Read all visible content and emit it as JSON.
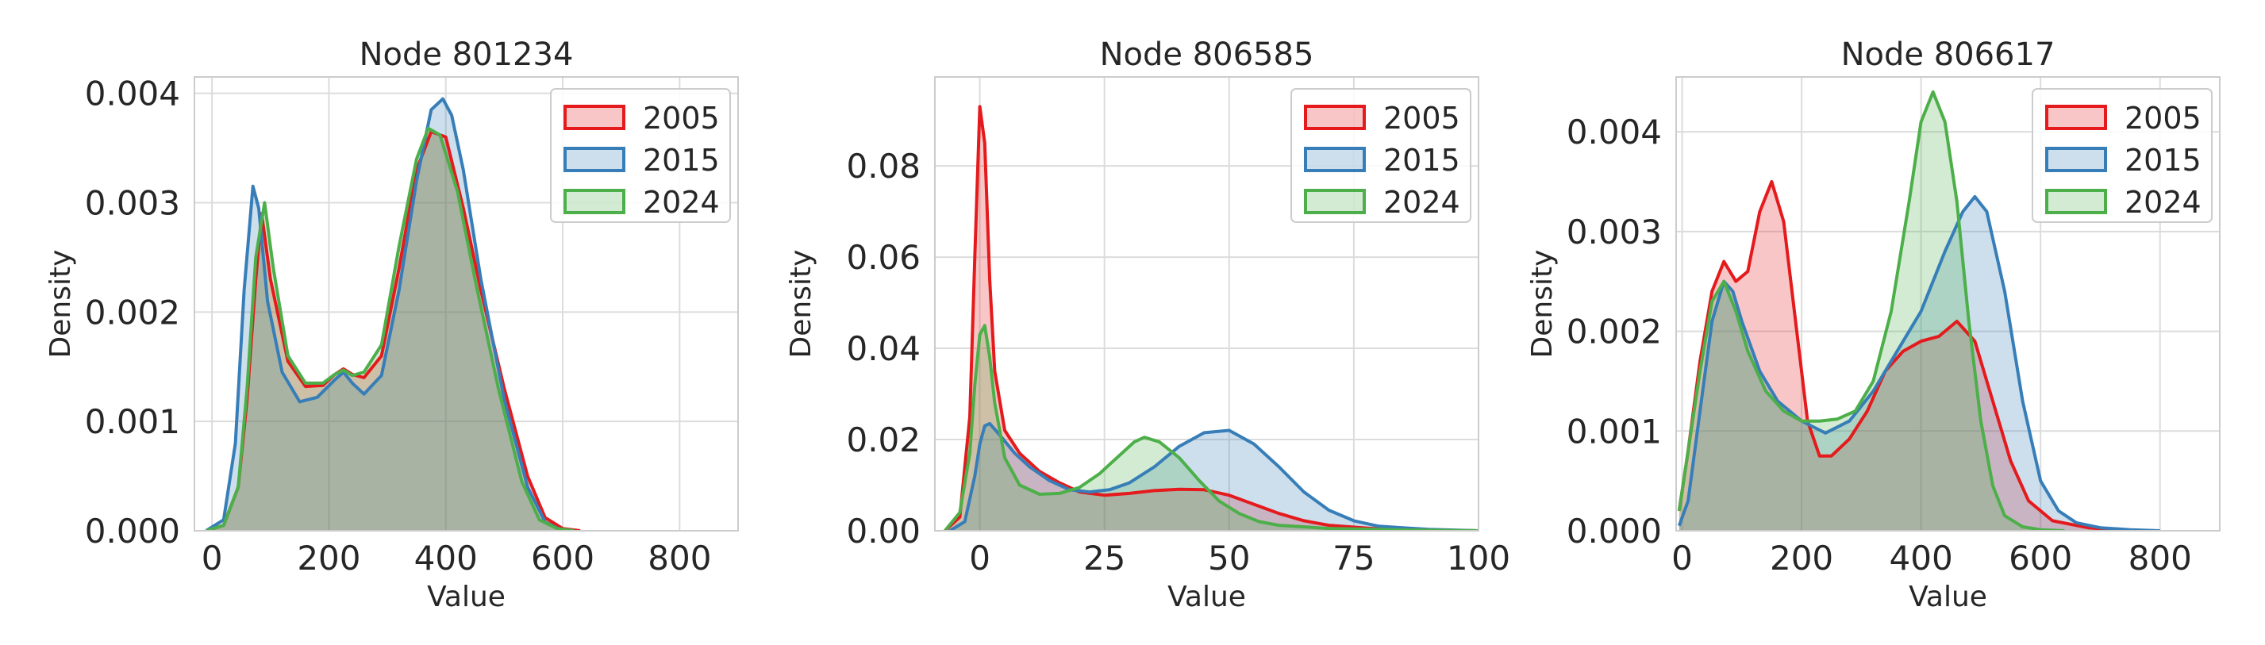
{
  "chart_data": [
    {
      "type": "area",
      "title": "Node 801234",
      "xlabel": "Value",
      "ylabel": "Density",
      "xlim": [
        -30,
        900
      ],
      "ylim": [
        0,
        0.00415
      ],
      "xticks": [
        0,
        200,
        400,
        600,
        800
      ],
      "xtick_labels": [
        "0",
        "200",
        "400",
        "600",
        "800"
      ],
      "yticks": [
        0,
        0.001,
        0.002,
        0.003,
        0.004
      ],
      "ytick_labels": [
        "0.000",
        "0.001",
        "0.002",
        "0.003",
        "0.004"
      ],
      "grid": true,
      "legend_position": "top-right",
      "series": [
        {
          "name": "2005",
          "color": "#e41a1c",
          "x": [
            -10,
            20,
            45,
            60,
            75,
            85,
            100,
            130,
            160,
            190,
            210,
            225,
            240,
            260,
            290,
            320,
            350,
            375,
            400,
            430,
            460,
            500,
            540,
            570,
            600,
            630
          ],
          "y": [
            0,
            5e-05,
            0.0004,
            0.0012,
            0.0023,
            0.0029,
            0.0023,
            0.00155,
            0.00132,
            0.00133,
            0.00143,
            0.00148,
            0.00143,
            0.0014,
            0.0016,
            0.0024,
            0.0033,
            0.00365,
            0.0036,
            0.00295,
            0.0022,
            0.0013,
            0.0005,
            0.00012,
            2e-05,
            0
          ]
        },
        {
          "name": "2015",
          "color": "#377eb8",
          "x": [
            -10,
            20,
            40,
            55,
            70,
            80,
            95,
            120,
            150,
            180,
            210,
            225,
            240,
            260,
            290,
            320,
            350,
            375,
            395,
            410,
            430,
            460,
            500,
            540,
            570,
            600
          ],
          "y": [
            0,
            0.0001,
            0.0008,
            0.0022,
            0.00315,
            0.00295,
            0.0021,
            0.00145,
            0.00118,
            0.00122,
            0.00138,
            0.00145,
            0.00135,
            0.00125,
            0.00142,
            0.0022,
            0.0032,
            0.00385,
            0.00395,
            0.0038,
            0.0033,
            0.0023,
            0.0012,
            0.0004,
            8e-05,
            0
          ]
        },
        {
          "name": "2024",
          "color": "#4daf4a",
          "x": [
            -10,
            20,
            45,
            60,
            75,
            90,
            105,
            130,
            160,
            190,
            210,
            225,
            240,
            260,
            290,
            320,
            350,
            370,
            390,
            420,
            450,
            490,
            530,
            560,
            590,
            620
          ],
          "y": [
            0,
            5e-05,
            0.0004,
            0.0013,
            0.0025,
            0.003,
            0.0024,
            0.0016,
            0.00135,
            0.00135,
            0.00143,
            0.00147,
            0.00142,
            0.00145,
            0.0017,
            0.0026,
            0.0034,
            0.00368,
            0.00362,
            0.0031,
            0.0023,
            0.0013,
            0.00045,
            0.0001,
            2e-05,
            0
          ]
        }
      ]
    },
    {
      "type": "area",
      "title": "Node 806585",
      "xlabel": "Value",
      "ylabel": "Density",
      "xlim": [
        -9,
        100
      ],
      "ylim": [
        0,
        0.0995
      ],
      "xticks": [
        0,
        25,
        50,
        75,
        100
      ],
      "xtick_labels": [
        "0",
        "25",
        "50",
        "75",
        "100"
      ],
      "yticks": [
        0,
        0.02,
        0.04,
        0.06,
        0.08
      ],
      "ytick_labels": [
        "0.00",
        "0.02",
        "0.04",
        "0.06",
        "0.08"
      ],
      "grid": true,
      "legend_position": "top-right",
      "series": [
        {
          "name": "2005",
          "color": "#e41a1c",
          "x": [
            -7,
            -4,
            -2,
            -1,
            0,
            1,
            2,
            3,
            5,
            8,
            12,
            16,
            20,
            25,
            30,
            35,
            40,
            45,
            50,
            55,
            60,
            65,
            70,
            80,
            90,
            100
          ],
          "y": [
            0,
            0.003,
            0.025,
            0.06,
            0.093,
            0.085,
            0.055,
            0.035,
            0.022,
            0.017,
            0.013,
            0.0105,
            0.0085,
            0.0078,
            0.0082,
            0.0088,
            0.0091,
            0.009,
            0.0078,
            0.0058,
            0.0038,
            0.0022,
            0.0012,
            0.0004,
            0.0001,
            0
          ]
        },
        {
          "name": "2015",
          "color": "#377eb8",
          "x": [
            -6,
            -3,
            -1,
            0,
            1,
            2,
            4,
            7,
            10,
            14,
            18,
            22,
            26,
            30,
            35,
            40,
            45,
            50,
            55,
            60,
            65,
            70,
            75,
            80,
            90,
            100
          ],
          "y": [
            0,
            0.002,
            0.012,
            0.019,
            0.023,
            0.0235,
            0.021,
            0.017,
            0.014,
            0.011,
            0.009,
            0.0085,
            0.009,
            0.0105,
            0.014,
            0.0185,
            0.0215,
            0.022,
            0.019,
            0.014,
            0.0085,
            0.0045,
            0.0022,
            0.001,
            0.0003,
            0
          ]
        },
        {
          "name": "2024",
          "color": "#4daf4a",
          "x": [
            -7,
            -4,
            -2,
            -1,
            0,
            1,
            2,
            3,
            5,
            8,
            12,
            16,
            20,
            24,
            28,
            31,
            33,
            36,
            40,
            44,
            48,
            52,
            56,
            60,
            70,
            85,
            100
          ],
          "y": [
            0,
            0.004,
            0.017,
            0.032,
            0.043,
            0.045,
            0.038,
            0.028,
            0.016,
            0.01,
            0.008,
            0.0082,
            0.0095,
            0.0125,
            0.0165,
            0.0195,
            0.0205,
            0.0195,
            0.016,
            0.011,
            0.0065,
            0.0038,
            0.002,
            0.0012,
            0.0005,
            0.0002,
            0
          ]
        }
      ]
    },
    {
      "type": "area",
      "title": "Node 806617",
      "xlabel": "Value",
      "ylabel": "Density",
      "xlim": [
        -10,
        900
      ],
      "ylim": [
        0,
        0.00455
      ],
      "xticks": [
        0,
        200,
        400,
        600,
        800
      ],
      "xtick_labels": [
        "0",
        "200",
        "400",
        "600",
        "800"
      ],
      "yticks": [
        0,
        0.001,
        0.002,
        0.003,
        0.004
      ],
      "ytick_labels": [
        "0.000",
        "0.001",
        "0.002",
        "0.003",
        "0.004"
      ],
      "grid": true,
      "legend_position": "top-right",
      "series": [
        {
          "name": "2005",
          "color": "#e41a1c",
          "x": [
            -5,
            10,
            30,
            50,
            70,
            90,
            110,
            130,
            150,
            170,
            190,
            210,
            230,
            250,
            280,
            310,
            340,
            370,
            400,
            430,
            460,
            490,
            520,
            550,
            580,
            620,
            680,
            750
          ],
          "y": [
            0.0002,
            0.0008,
            0.0017,
            0.0024,
            0.0027,
            0.0025,
            0.0026,
            0.0032,
            0.0035,
            0.0031,
            0.0021,
            0.0011,
            0.00075,
            0.00075,
            0.00092,
            0.0012,
            0.0016,
            0.0018,
            0.0019,
            0.00195,
            0.0021,
            0.0019,
            0.0013,
            0.0007,
            0.0003,
            0.0001,
            3e-05,
            0
          ]
        },
        {
          "name": "2015",
          "color": "#377eb8",
          "x": [
            -5,
            10,
            30,
            50,
            70,
            85,
            100,
            130,
            160,
            200,
            240,
            280,
            320,
            360,
            400,
            440,
            470,
            490,
            510,
            540,
            570,
            600,
            630,
            660,
            700,
            750,
            800
          ],
          "y": [
            5e-05,
            0.0003,
            0.0012,
            0.0021,
            0.0025,
            0.0024,
            0.0021,
            0.0016,
            0.0013,
            0.0011,
            0.00098,
            0.0011,
            0.0014,
            0.0018,
            0.0022,
            0.0028,
            0.0032,
            0.00335,
            0.0032,
            0.0024,
            0.0013,
            0.0005,
            0.0002,
            8e-05,
            3e-05,
            1e-05,
            0
          ]
        },
        {
          "name": "2024",
          "color": "#4daf4a",
          "x": [
            -5,
            10,
            30,
            50,
            70,
            90,
            110,
            140,
            170,
            200,
            230,
            260,
            290,
            320,
            350,
            380,
            400,
            420,
            440,
            460,
            480,
            500,
            520,
            540,
            570,
            600,
            640
          ],
          "y": [
            0.0002,
            0.0008,
            0.0016,
            0.0023,
            0.0025,
            0.0022,
            0.0018,
            0.0014,
            0.0012,
            0.0011,
            0.0011,
            0.00112,
            0.0012,
            0.0015,
            0.0022,
            0.0033,
            0.0041,
            0.0044,
            0.0041,
            0.0033,
            0.0021,
            0.0011,
            0.00045,
            0.00015,
            4e-05,
            1e-05,
            0
          ]
        }
      ]
    }
  ]
}
